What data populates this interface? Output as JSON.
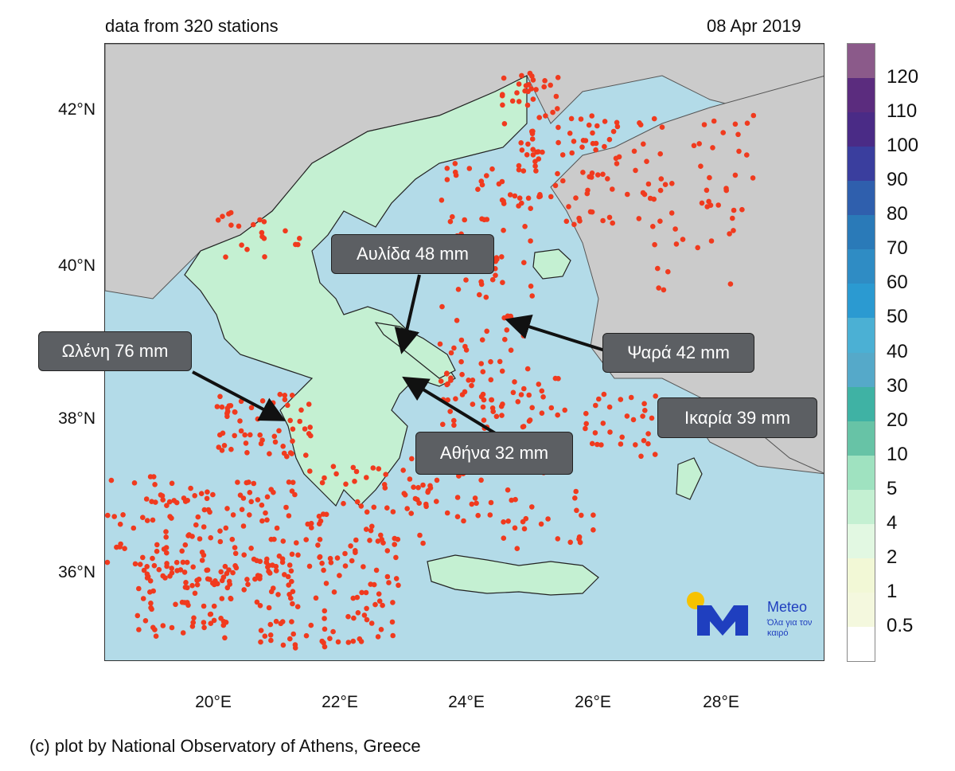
{
  "header": {
    "left_text": "data from 320 stations",
    "right_text": "08 Apr 2019"
  },
  "map": {
    "region": "Greece and Aegean Sea",
    "sea_color": "#b3dbe8",
    "land_outside_color": "#cbcbcb",
    "station_color": "#f03a1e",
    "lat_labels": [
      "42°N",
      "40°N",
      "38°N",
      "36°N"
    ],
    "lon_labels": [
      "20°E",
      "22°E",
      "24°E",
      "26°E",
      "28°E"
    ]
  },
  "callouts": [
    {
      "id": "aulida",
      "text": "Αυλίδα 48 mm"
    },
    {
      "id": "oleni",
      "text": "Ωλένη 76 mm"
    },
    {
      "id": "psara",
      "text": "Ψαρά 42 mm"
    },
    {
      "id": "ikaria",
      "text": "Ικαρία 39 mm"
    },
    {
      "id": "athina",
      "text": "Αθήνα 32 mm"
    }
  ],
  "legend": {
    "labels": [
      "120",
      "110",
      "100",
      "90",
      "80",
      "70",
      "60",
      "50",
      "40",
      "30",
      "20",
      "10",
      "5",
      "4",
      "2",
      "1",
      "0.5"
    ],
    "colors": [
      "#8b5a8a",
      "#5b2c7e",
      "#4a2b86",
      "#3a3e9e",
      "#2f5fad",
      "#2a7ab8",
      "#2f8cc4",
      "#2b9ad1",
      "#4bb0d4",
      "#55a9c9",
      "#3fb2a4",
      "#67c3a6",
      "#9fe2c0",
      "#c4f0d2",
      "#e2f8e2",
      "#f2f8d6",
      "#f4f8de",
      "#ffffff"
    ]
  },
  "logo": {
    "name": "Meteo",
    "tagline": "Όλα για τον καιρό"
  },
  "footer": "(c) plot by National Observatory of Athens, Greece"
}
